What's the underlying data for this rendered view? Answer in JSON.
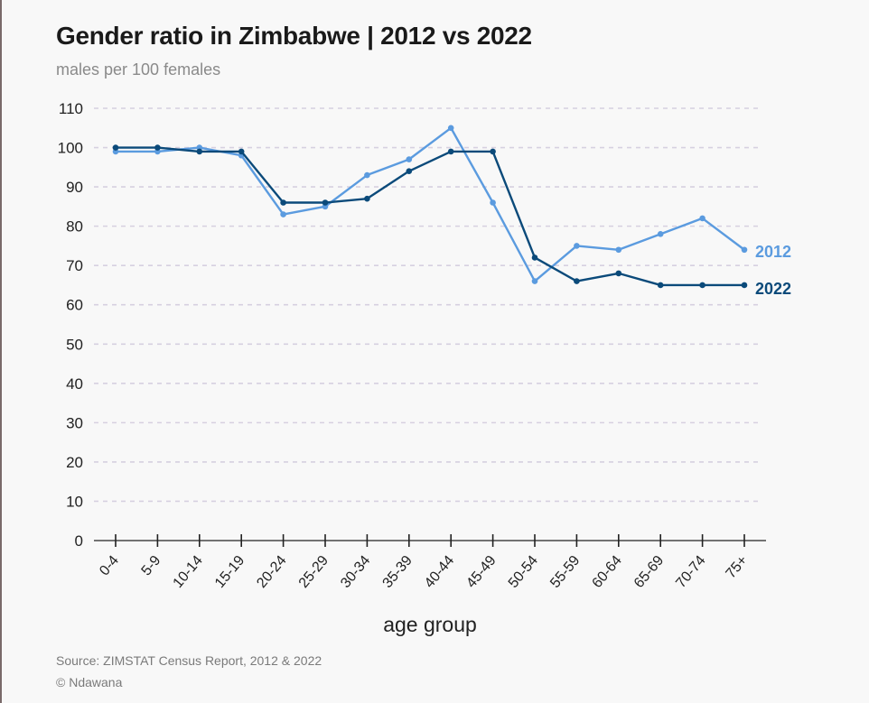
{
  "header": {
    "title": "Gender ratio in Zimbabwe | 2012 vs 2022",
    "subtitle": "males per 100 females"
  },
  "footer": {
    "source": "Source: ZIMSTAT Census Report, 2012 & 2022",
    "credit": "© Ndawana"
  },
  "chart_data": {
    "type": "line",
    "title": "Gender ratio in Zimbabwe | 2012 vs 2022",
    "subtitle": "males per 100 females",
    "xlabel": "age group",
    "ylabel": "",
    "ylim": [
      0,
      110
    ],
    "yticks": [
      0,
      10,
      20,
      30,
      40,
      50,
      60,
      70,
      80,
      90,
      100,
      110
    ],
    "grid": true,
    "legend": "end-of-line labels",
    "categories": [
      "0-4",
      "5-9",
      "10-14",
      "15-19",
      "20-24",
      "25-29",
      "30-34",
      "35-39",
      "40-44",
      "45-49",
      "50-54",
      "55-59",
      "60-64",
      "65-69",
      "70-74",
      "75+"
    ],
    "series": [
      {
        "name": "2012",
        "color": "#5b9bdf",
        "values": [
          99,
          99,
          100,
          98,
          83,
          85,
          93,
          97,
          105,
          86,
          66,
          75,
          74,
          78,
          82,
          74
        ]
      },
      {
        "name": "2022",
        "color": "#0b4a7a",
        "values": [
          100,
          100,
          99,
          99,
          86,
          86,
          87,
          94,
          99,
          99,
          72,
          66,
          68,
          65,
          65,
          65
        ]
      }
    ]
  }
}
